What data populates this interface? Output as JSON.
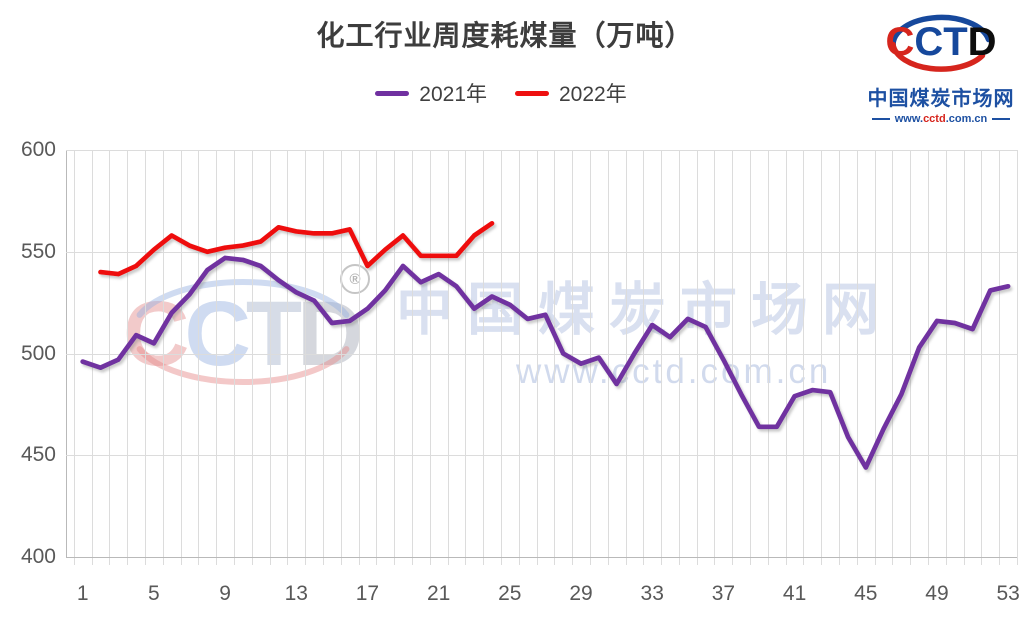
{
  "title": "化工行业周度耗煤量（万吨）",
  "logo": {
    "brand_letters": [
      "C",
      "C",
      "T",
      "D"
    ],
    "letter_colors": [
      "#D6251D",
      "#16489C",
      "#16489C",
      "#0D0D0D"
    ],
    "arc_colors": {
      "top": "#16489C",
      "bottom": "#D6251D"
    },
    "site_name": "中国煤炭市场网",
    "url_parts": {
      "www": "www.",
      "mid": "cctd",
      "rest": ".com.cn"
    }
  },
  "watermark": {
    "brand_letters": [
      "C",
      "C",
      "T",
      "D"
    ],
    "registered_mark": "®",
    "site_name": "中国煤炭市场网",
    "site_url": "www.cctd.com.cn"
  },
  "chart_data": {
    "type": "line",
    "title": "化工行业周度耗煤量（万吨）",
    "xlim": [
      1,
      53
    ],
    "ylim": [
      400,
      600
    ],
    "x_ticks": [
      1,
      5,
      9,
      13,
      17,
      21,
      25,
      29,
      33,
      37,
      41,
      45,
      49,
      53
    ],
    "y_ticks": [
      600,
      550,
      500,
      450,
      400
    ],
    "grid": "both",
    "legend_position": "top",
    "series": [
      {
        "name": "2021年",
        "color": "#7030A0",
        "x_start": 1,
        "values": [
          496,
          493,
          497,
          509,
          505,
          520,
          529,
          541,
          547,
          546,
          543,
          536,
          530,
          526,
          515,
          516,
          522,
          531,
          543,
          535,
          539,
          533,
          522,
          528,
          524,
          517,
          519,
          500,
          495,
          498,
          485,
          500,
          514,
          508,
          517,
          513,
          497,
          480,
          464,
          464,
          479,
          482,
          481,
          459,
          444,
          463,
          480,
          503,
          516,
          515,
          512,
          531,
          533
        ]
      },
      {
        "name": "2022年",
        "color": "#EE1010",
        "x_start": 2,
        "values": [
          540,
          539,
          543,
          551,
          558,
          553,
          550,
          552,
          553,
          555,
          562,
          560,
          559,
          559,
          561,
          543,
          551,
          558,
          548,
          548,
          548,
          558,
          564
        ]
      }
    ]
  }
}
